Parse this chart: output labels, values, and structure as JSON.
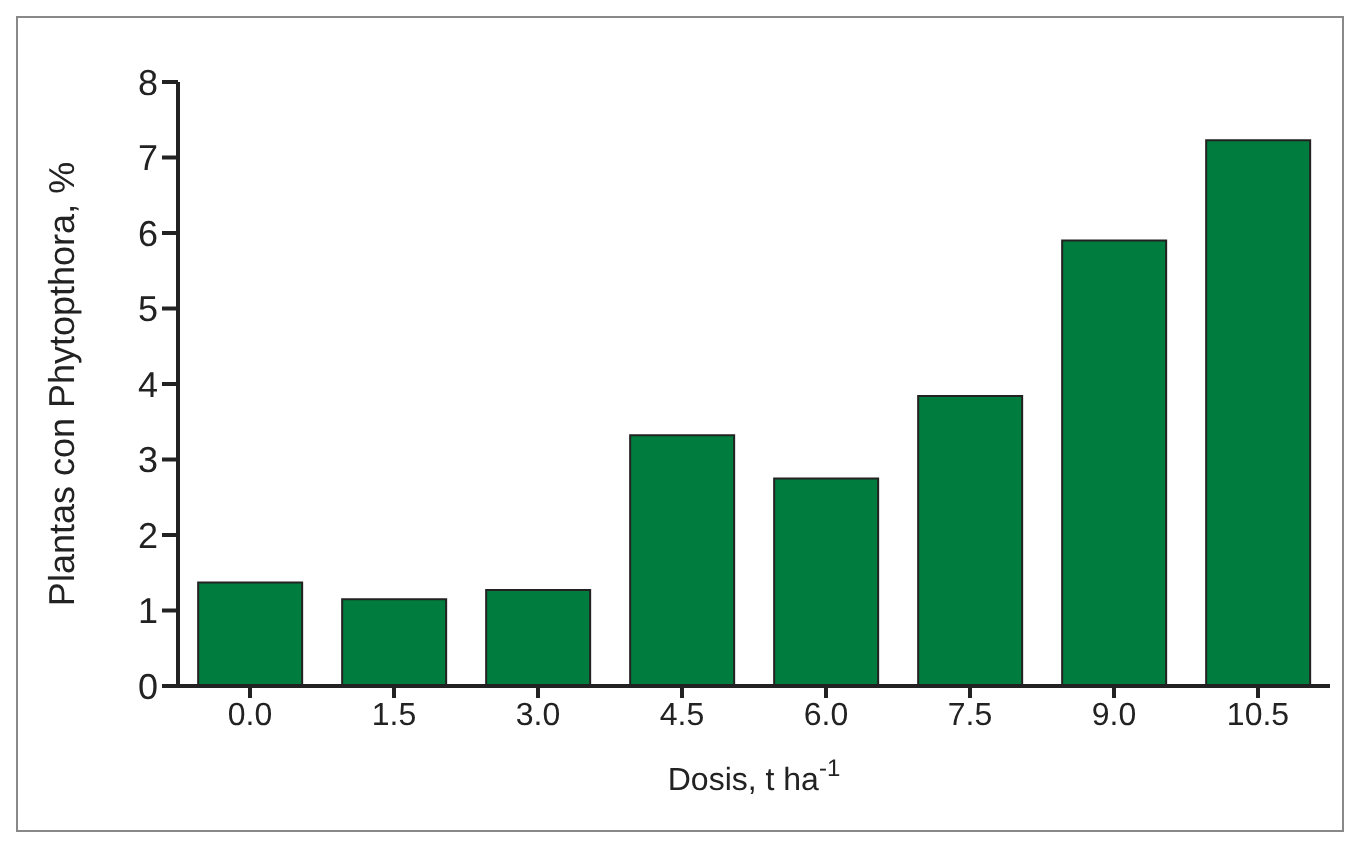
{
  "chart_data": {
    "type": "bar",
    "xlabel": "Dosis, t ha$^{-1}$",
    "ylabel": "Plantas con Phytopthora, %",
    "categories": [
      "0.0",
      "1.5",
      "3.0",
      "4.5",
      "6.0",
      "7.5",
      "9.0",
      "10.5"
    ],
    "values": [
      1.37,
      1.15,
      1.27,
      3.32,
      2.75,
      3.84,
      5.9,
      7.23
    ],
    "color": "#007c3e",
    "ylim": [
      0,
      8
    ],
    "yticks": [
      0,
      1,
      2,
      3,
      4,
      5,
      6,
      7,
      8
    ],
    "grid": false
  }
}
